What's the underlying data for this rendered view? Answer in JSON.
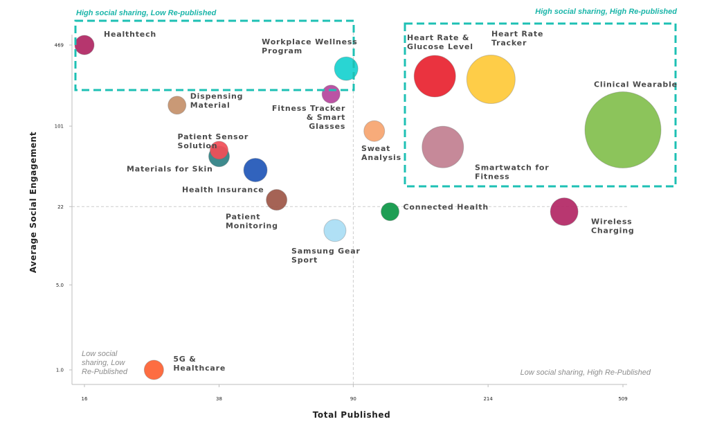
{
  "chart_data": {
    "type": "scatter",
    "subtype": "bubble",
    "xlabel": "Total Published",
    "ylabel": "Average Social Engagement",
    "x_scale": "log",
    "y_scale": "log",
    "x_ticks": [
      {
        "value": 16,
        "label": "16"
      },
      {
        "value": 38,
        "label": "38"
      },
      {
        "value": 90,
        "label": "90"
      },
      {
        "value": 214,
        "label": "214"
      },
      {
        "value": 509,
        "label": "509"
      }
    ],
    "y_ticks": [
      {
        "value": 469,
        "label": "469"
      },
      {
        "value": 101,
        "label": "101"
      },
      {
        "value": 22,
        "label": "22"
      },
      {
        "value": 5,
        "label": "5.0"
      },
      {
        "value": 1,
        "label": "1.0"
      }
    ],
    "xlim": [
      16,
      509
    ],
    "ylim": [
      1,
      469
    ],
    "reference_lines": {
      "x": 90,
      "y": 22
    },
    "quadrant_labels": {
      "top_left": "High social sharing, Low Re-published",
      "top_right": "High social sharing, High Re-published",
      "bottom_left": [
        "Low social",
        "sharing, Low",
        "Re-Published"
      ],
      "bottom_right": "Low social sharing, High Re-Published"
    },
    "colors": {
      "highlight_box": "#1ec0b4",
      "quadrant_text_teal": "#1ab5a9",
      "quadrant_text_grey": "#8c8c8c",
      "reference_line": "#cccccc"
    },
    "points": [
      {
        "label": [
          "Healthtech"
        ],
        "x": 16,
        "y": 469,
        "size": 14,
        "color": "#b02562",
        "label_pos": "upper-right"
      },
      {
        "label": [
          "Workplace Wellness",
          "Program"
        ],
        "x": 86,
        "y": 300,
        "size": 17,
        "color": "#17d1cf",
        "label_pos": "upper-left"
      },
      {
        "label": [
          "Fitness Tracker",
          "& Smart",
          "Glasses"
        ],
        "x": 78,
        "y": 185,
        "size": 13,
        "color": "#b5449c",
        "label_pos": "below-right-aligned"
      },
      {
        "label": [
          "Dispensing",
          "Material"
        ],
        "x": 29,
        "y": 150,
        "size": 13,
        "color": "#c4906a",
        "label_pos": "right"
      },
      {
        "label": [
          "Patient Sensor",
          "Solution"
        ],
        "x": 38,
        "y": 64,
        "size": 13,
        "color": "#f24d57",
        "label_pos": "left"
      },
      {
        "label": [
          "Materials for Skin"
        ],
        "x": 38,
        "y": 57,
        "size": 15,
        "color": "#2e8083",
        "label_pos": "below-left"
      },
      {
        "label": [
          "Health Insurance"
        ],
        "x": 48,
        "y": 44,
        "size": 17,
        "color": "#1f56b7",
        "label_pos": "below-left"
      },
      {
        "label": [
          "Patient",
          "Monitoring"
        ],
        "x": 55,
        "y": 25,
        "size": 15,
        "color": "#9d5647",
        "label_pos": "below-left"
      },
      {
        "label": [
          "Sweat",
          "Analysis"
        ],
        "x": 103,
        "y": 92,
        "size": 15,
        "color": "#f6a46f",
        "label_pos": "below"
      },
      {
        "label": [
          "Heart Rate &",
          "Glucose Level"
        ],
        "x": 152,
        "y": 260,
        "size": 30,
        "color": "#e8222f",
        "label_pos": "above"
      },
      {
        "label": [
          "Heart Rate",
          "Tracker"
        ],
        "x": 218,
        "y": 245,
        "size": 35,
        "color": "#fec938",
        "label_pos": "above"
      },
      {
        "label": [
          "Clinical Wearable"
        ],
        "x": 509,
        "y": 94,
        "size": 55,
        "color": "#82bf4d",
        "label_pos": "above"
      },
      {
        "label": [
          "Smartwatch for",
          "Fitness"
        ],
        "x": 160,
        "y": 68,
        "size": 30,
        "color": "#c17f90",
        "label_pos": "below-right"
      },
      {
        "label": [
          "Connected Health"
        ],
        "x": 114,
        "y": 20,
        "size": 13,
        "color": "#0b9645",
        "label_pos": "right"
      },
      {
        "label": [
          "Wireless",
          "Charging"
        ],
        "x": 349,
        "y": 20,
        "size": 20,
        "color": "#b22664",
        "label_pos": "below-right"
      },
      {
        "label": [
          "Samsung Gear",
          "Sport"
        ],
        "x": 80,
        "y": 14,
        "size": 16,
        "color": "#a9ddf4",
        "label_pos": "below-left"
      },
      {
        "label": [
          "5G &",
          "Healthcare"
        ],
        "x": 25,
        "y": 1,
        "size": 14,
        "color": "#fd6132",
        "label_pos": "upper-right"
      }
    ]
  }
}
